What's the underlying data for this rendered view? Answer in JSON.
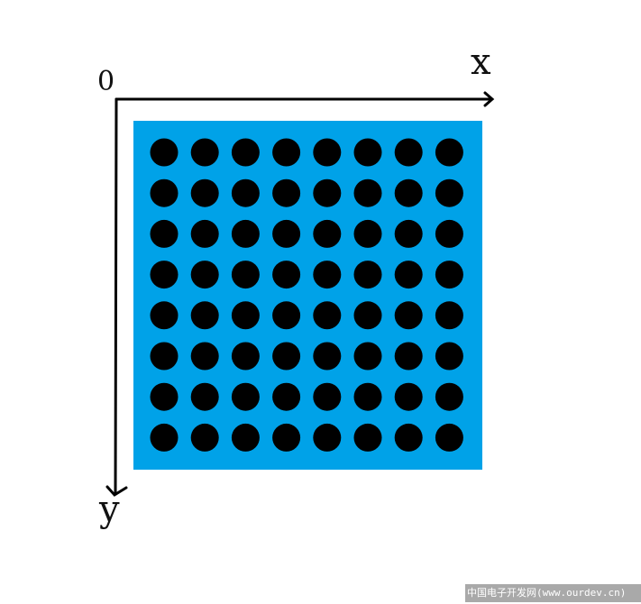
{
  "axes": {
    "origin_label": "0",
    "x_label": "x",
    "y_label": "y"
  },
  "led_matrix": {
    "rows": 8,
    "cols": 8,
    "panel_color": "#00a2e8",
    "dot_color": "#000000"
  },
  "watermark": {
    "text": "中国电子开发网(www.ourdev.cn)"
  }
}
